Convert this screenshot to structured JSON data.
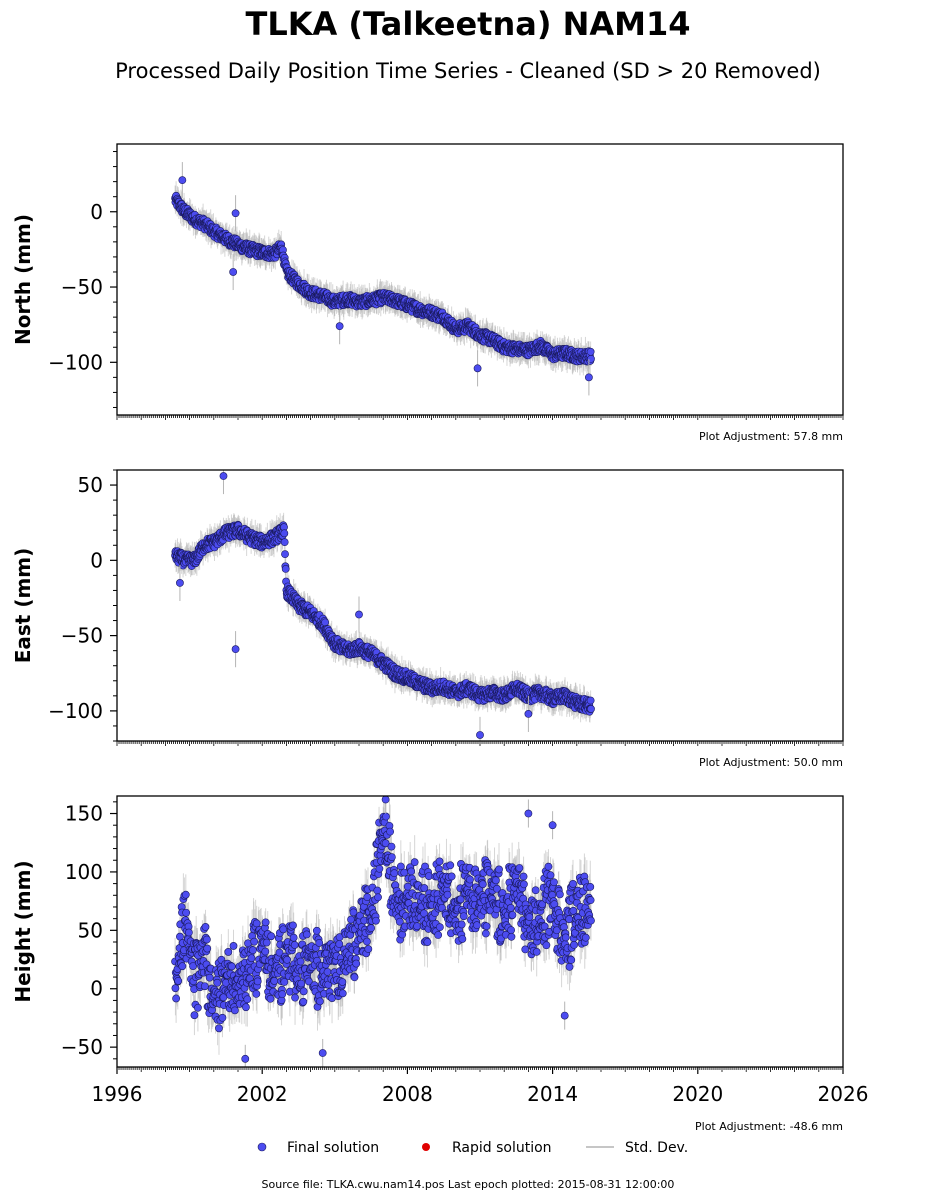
{
  "title": "TLKA (Talkeetna) NAM14",
  "subtitle": "Processed Daily Position Time Series - Cleaned (SD > 20 Removed)",
  "colors": {
    "final": "#4c4cf0",
    "final_edge": "#1a1a5e",
    "rapid": "#e00000",
    "stddev": "#b4b4b4"
  },
  "legend": {
    "final": "Final solution",
    "rapid": "Rapid solution",
    "stddev": "Std. Dev."
  },
  "source": "Source file: TLKA.cwu.nam14.pos  Last epoch plotted: 2015-08-31 12:00:00",
  "chart_data": [
    {
      "type": "scatter",
      "ylabel": "North (mm)",
      "xlim": [
        1996,
        2026
      ],
      "ylim": [
        -135,
        45
      ],
      "yticks": [
        0,
        -50,
        -100
      ],
      "adjustment": "Plot Adjustment: 57.8 mm",
      "series": [
        {
          "name": "Final solution",
          "x": [
            1998.4,
            1998.8,
            1999.2,
            1999.6,
            2000.0,
            2000.5,
            2001.0,
            2001.5,
            2002.0,
            2002.5,
            2002.8,
            2003.0,
            2003.5,
            2004.0,
            2004.5,
            2005.0,
            2005.5,
            2006.0,
            2006.5,
            2007.0,
            2007.5,
            2008.0,
            2008.5,
            2009.0,
            2009.5,
            2010.0,
            2010.5,
            2011.0,
            2011.5,
            2012.0,
            2012.5,
            2013.0,
            2013.5,
            2014.0,
            2014.5,
            2015.0,
            2015.6
          ],
          "y": [
            8,
            0,
            -5,
            -8,
            -13,
            -18,
            -22,
            -25,
            -27,
            -28,
            -23,
            -40,
            -48,
            -54,
            -56,
            -60,
            -58,
            -60,
            -59,
            -57,
            -59,
            -62,
            -65,
            -67,
            -70,
            -78,
            -76,
            -82,
            -85,
            -90,
            -91,
            -92,
            -89,
            -95,
            -94,
            -96,
            -96
          ]
        }
      ],
      "outliers": {
        "x": [
          1998.7,
          2000.9,
          2000.8,
          2005.2,
          2010.9,
          2015.5
        ],
        "y": [
          21,
          -1,
          -40,
          -76,
          -104,
          -110
        ]
      }
    },
    {
      "type": "scatter",
      "ylabel": "East (mm)",
      "xlim": [
        1996,
        2026
      ],
      "ylim": [
        -120,
        60
      ],
      "yticks": [
        50,
        0,
        -50,
        -100
      ],
      "adjustment": "Plot Adjustment: 50.0 mm",
      "series": [
        {
          "name": "Final solution",
          "x": [
            1998.4,
            1998.8,
            1999.2,
            1999.6,
            2000.0,
            2000.5,
            2001.0,
            2001.5,
            2002.0,
            2002.5,
            2002.9,
            2003.0,
            2003.5,
            2004.0,
            2004.5,
            2005.0,
            2005.5,
            2006.0,
            2006.5,
            2007.0,
            2007.5,
            2008.0,
            2008.5,
            2009.0,
            2009.5,
            2010.0,
            2010.5,
            2011.0,
            2011.5,
            2012.0,
            2012.5,
            2013.0,
            2013.5,
            2014.0,
            2014.5,
            2015.0,
            2015.6
          ],
          "y": [
            3,
            0,
            0,
            10,
            12,
            18,
            20,
            15,
            12,
            15,
            20,
            -20,
            -30,
            -35,
            -42,
            -55,
            -60,
            -58,
            -62,
            -68,
            -75,
            -78,
            -82,
            -85,
            -84,
            -88,
            -85,
            -90,
            -88,
            -90,
            -85,
            -90,
            -88,
            -92,
            -90,
            -95,
            -97
          ]
        }
      ],
      "outliers": {
        "x": [
          2000.4,
          2000.9,
          2006.0,
          1998.6,
          2011.0,
          2013.0
        ],
        "y": [
          56,
          -59,
          -36,
          -15,
          -116,
          -102
        ]
      }
    },
    {
      "type": "scatter",
      "ylabel": "Height (mm)",
      "xlim": [
        1996,
        2026
      ],
      "ylim": [
        -67,
        165
      ],
      "yticks": [
        150,
        100,
        50,
        0,
        -50
      ],
      "xticks": [
        1996,
        2002,
        2008,
        2014,
        2020,
        2026
      ],
      "adjustment": "Plot Adjustment: -48.6 mm",
      "series": [
        {
          "name": "Final solution",
          "x": [
            1998.4,
            1998.8,
            1999.2,
            1999.6,
            2000.0,
            2000.5,
            2001.0,
            2001.5,
            2002.0,
            2002.5,
            2003.0,
            2003.5,
            2004.0,
            2004.5,
            2005.0,
            2005.5,
            2006.0,
            2006.5,
            2007.0,
            2007.3,
            2007.6,
            2008.0,
            2008.5,
            2009.0,
            2009.5,
            2010.0,
            2010.5,
            2011.0,
            2011.5,
            2012.0,
            2012.5,
            2013.0,
            2013.5,
            2014.0,
            2014.5,
            2015.0,
            2015.6
          ],
          "y": [
            0,
            60,
            5,
            30,
            -10,
            10,
            0,
            20,
            40,
            10,
            30,
            15,
            25,
            10,
            20,
            30,
            50,
            60,
            140,
            100,
            70,
            80,
            75,
            70,
            85,
            60,
            90,
            75,
            80,
            60,
            90,
            50,
            60,
            80,
            40,
            70,
            70
          ]
        }
      ],
      "outliers": {
        "x": [
          2001.3,
          2004.5,
          2013.0,
          2014.0,
          2014.5,
          2007.1
        ],
        "y": [
          -60,
          -55,
          150,
          140,
          -23,
          162
        ]
      }
    }
  ]
}
